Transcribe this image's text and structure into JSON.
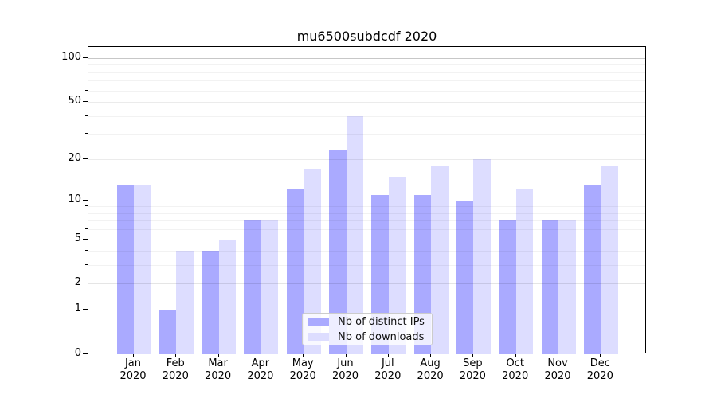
{
  "chart_data": {
    "type": "bar",
    "title": "mu6500subdcdf 2020",
    "categories": [
      "Jan 2020",
      "Feb 2020",
      "Mar 2020",
      "Apr 2020",
      "May 2020",
      "Jun 2020",
      "Jul 2020",
      "Aug 2020",
      "Sep 2020",
      "Oct 2020",
      "Nov 2020",
      "Dec 2020"
    ],
    "series": [
      {
        "name": "Nb of distinct IPs",
        "color": "#aaaaff",
        "values": [
          13,
          1,
          4,
          7,
          12,
          23,
          11,
          11,
          10,
          7,
          7,
          13
        ]
      },
      {
        "name": "Nb of downloads",
        "color": "#ddddff",
        "values": [
          13,
          4,
          5,
          7,
          17,
          40,
          15,
          18,
          20,
          12,
          7,
          18
        ]
      }
    ],
    "xlabel": "",
    "ylabel": "",
    "yscale": "log10(value+1)",
    "ylim": [
      0,
      100
    ],
    "yticks": [
      0,
      1,
      2,
      5,
      10,
      20,
      50,
      100
    ],
    "decade_gridlines": [
      1,
      10,
      100
    ],
    "light_gridlines": [
      2,
      3,
      4,
      6,
      7,
      8,
      9,
      30,
      40,
      60,
      70,
      80,
      90
    ],
    "labeled_light_gridlines": [
      2,
      5,
      20,
      50
    ],
    "grid": "horizontal major+minor, drawn over bars",
    "legend_position": "lower center (inside axes)"
  }
}
